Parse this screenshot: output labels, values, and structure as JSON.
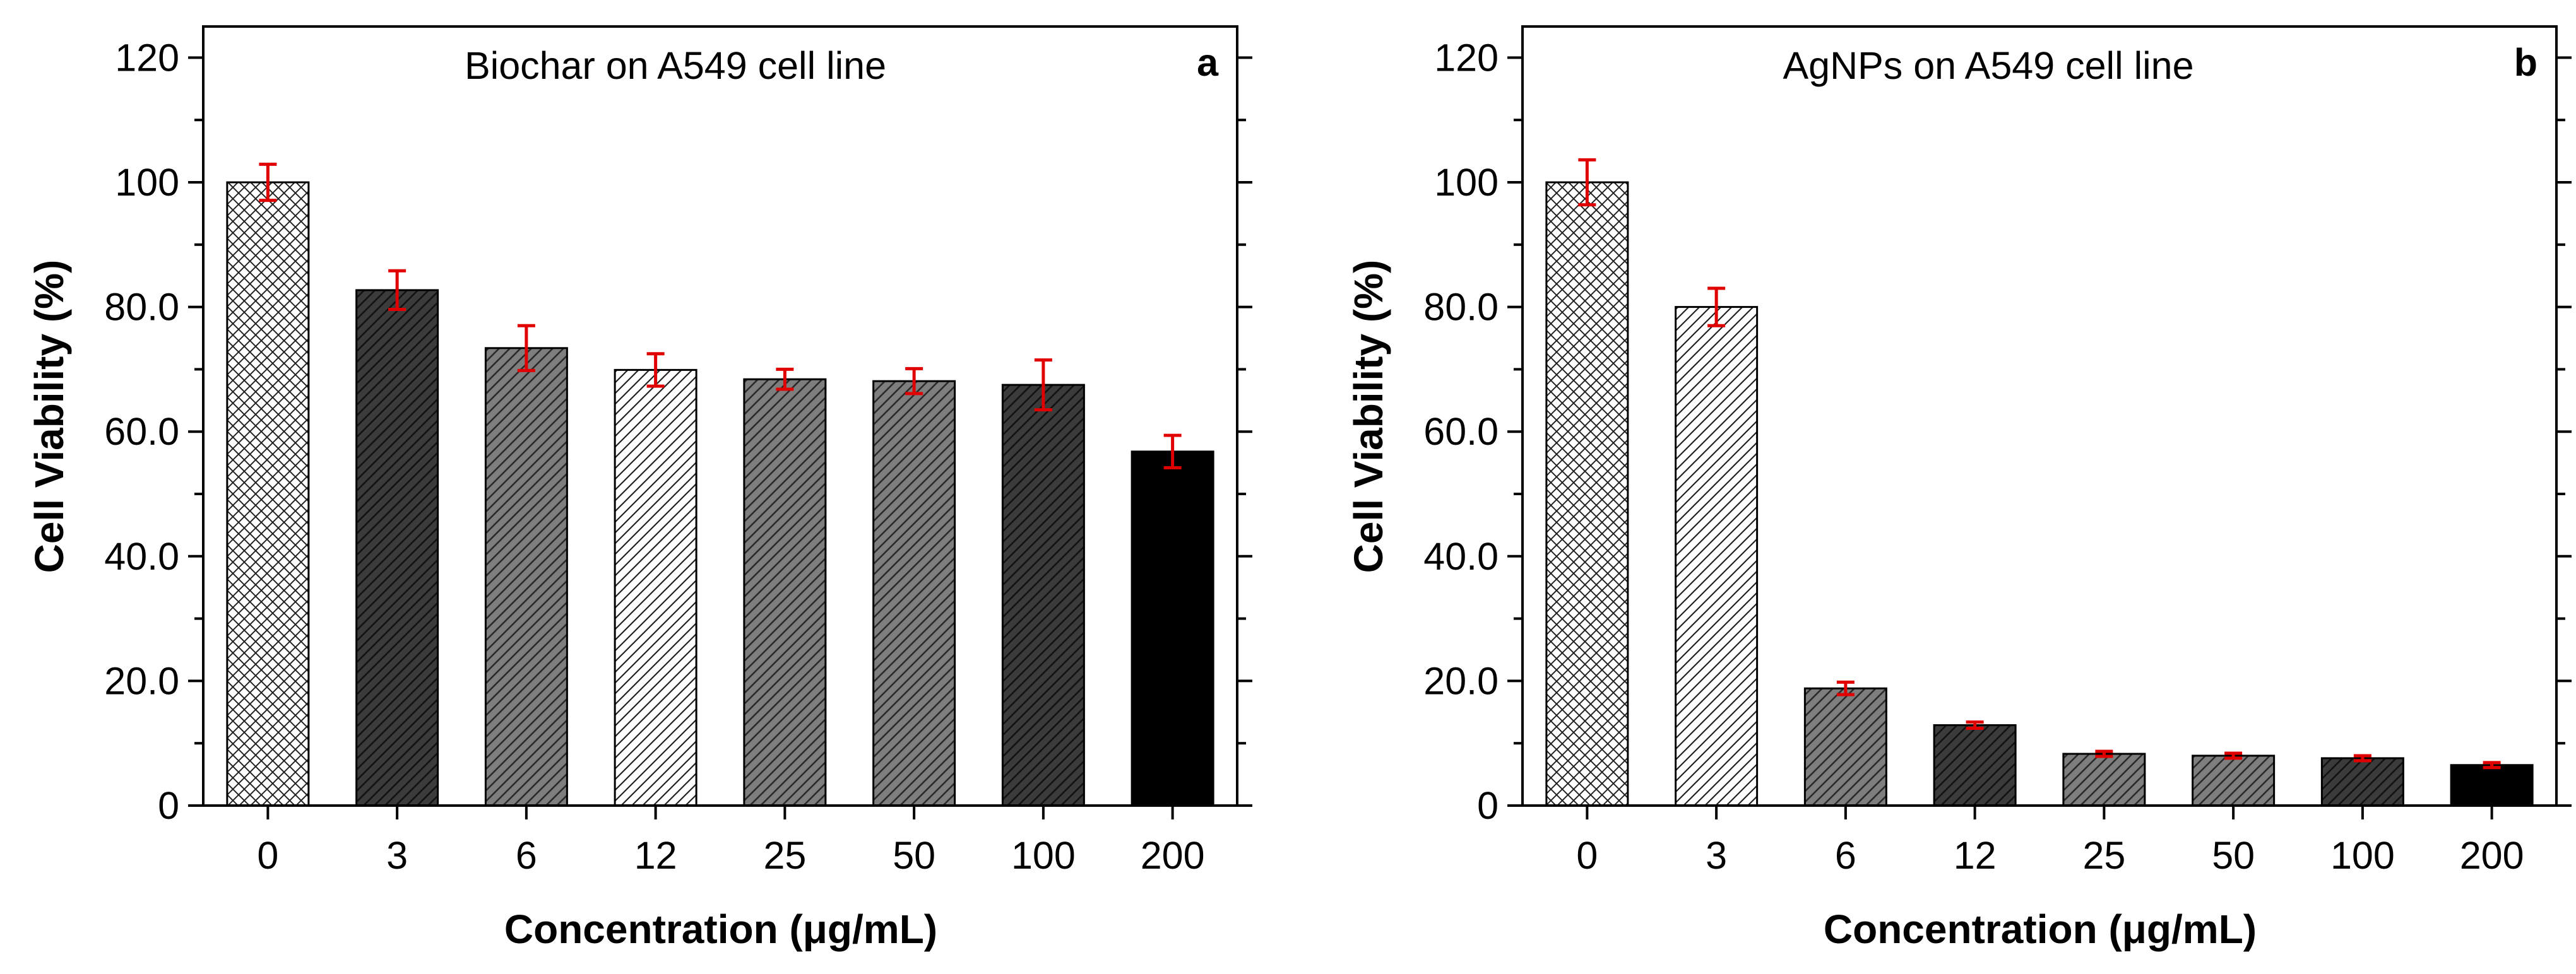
{
  "chart_data": [
    {
      "type": "bar",
      "panel": "a",
      "title": "Biochar on A549 cell line",
      "xlabel": "Concentration (μg/mL)",
      "ylabel": "Cell Viability (%)",
      "categories": [
        "0",
        "3",
        "6",
        "12",
        "25",
        "50",
        "100",
        "200"
      ],
      "values": [
        100.0,
        82.7,
        73.4,
        69.9,
        68.4,
        68.1,
        67.5,
        56.8
      ],
      "errors": [
        2.9,
        3.1,
        3.6,
        2.6,
        1.6,
        2.0,
        4.0,
        2.6
      ],
      "ylim": [
        0,
        125
      ],
      "yticks": [
        {
          "value": 0,
          "label": "0"
        },
        {
          "value": 20,
          "label": "20.0"
        },
        {
          "value": 40,
          "label": "40.0"
        },
        {
          "value": 60,
          "label": "60.0"
        },
        {
          "value": 80,
          "label": "80.0"
        },
        {
          "value": 100,
          "label": "100"
        },
        {
          "value": 120,
          "label": "120"
        }
      ],
      "bar_patterns": [
        "crosshatch",
        "dark-hatch",
        "medium-hatch",
        "light-hatch",
        "medium-hatch",
        "medium-hatch",
        "dark-hatch",
        "solid-black"
      ],
      "error_color": "#e00000"
    },
    {
      "type": "bar",
      "panel": "b",
      "title": "AgNPs on A549 cell line",
      "xlabel": "Concentration (μg/mL)",
      "ylabel": "Cell Viability (%)",
      "categories": [
        "0",
        "3",
        "6",
        "12",
        "25",
        "50",
        "100",
        "200"
      ],
      "values": [
        100.0,
        80.0,
        18.8,
        12.9,
        8.3,
        8.0,
        7.6,
        6.5
      ],
      "errors": [
        3.6,
        3.0,
        1.0,
        0.5,
        0.4,
        0.4,
        0.4,
        0.4
      ],
      "ylim": [
        0,
        125
      ],
      "yticks": [
        {
          "value": 0,
          "label": "0"
        },
        {
          "value": 20,
          "label": "20.0"
        },
        {
          "value": 40,
          "label": "40.0"
        },
        {
          "value": 60,
          "label": "60.0"
        },
        {
          "value": 80,
          "label": "80.0"
        },
        {
          "value": 100,
          "label": "100"
        },
        {
          "value": 120,
          "label": "120"
        }
      ],
      "bar_patterns": [
        "crosshatch",
        "light-hatch",
        "medium-hatch",
        "dark-hatch",
        "medium-hatch",
        "medium-hatch",
        "dark-hatch",
        "solid-black"
      ],
      "error_color": "#e00000"
    }
  ]
}
